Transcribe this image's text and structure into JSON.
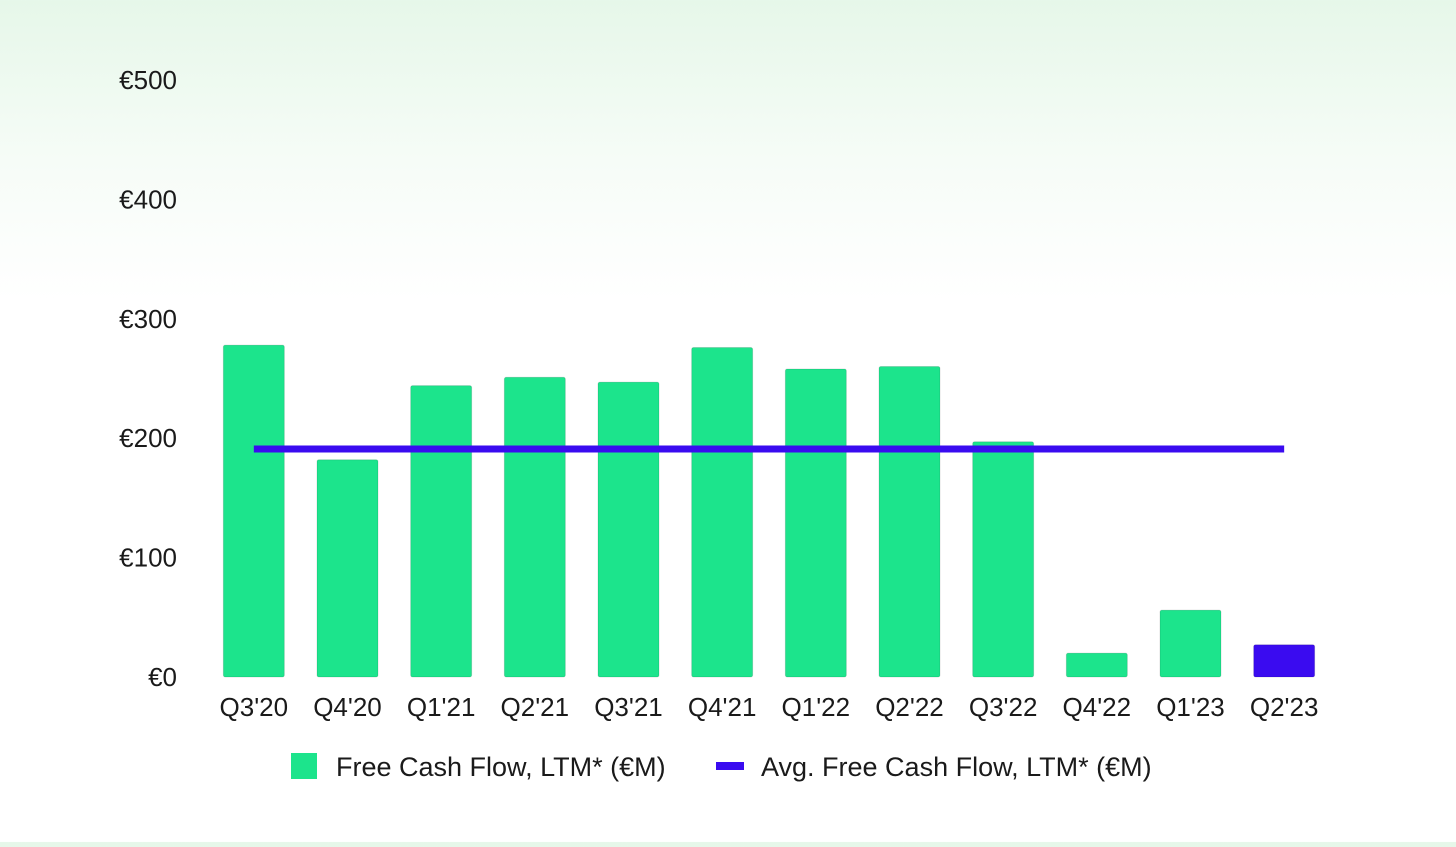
{
  "chart_data": {
    "type": "bar",
    "categories": [
      "Q3'20",
      "Q4'20",
      "Q1'21",
      "Q2'21",
      "Q3'21",
      "Q4'21",
      "Q1'22",
      "Q2'22",
      "Q3'22",
      "Q4'22",
      "Q1'23",
      "Q2'23"
    ],
    "series": [
      {
        "name": "Free Cash Flow, LTM* (€M)",
        "type": "bar",
        "values": [
          278,
          182,
          244,
          251,
          247,
          276,
          258,
          260,
          197,
          20,
          56,
          27
        ],
        "color": "#1ce48c",
        "highlight_index": 11,
        "highlight_color": "#3a0bf0"
      },
      {
        "name": "Avg. Free Cash Flow, LTM* (€M)",
        "type": "line",
        "value": 191,
        "color": "#3a0bf0"
      }
    ],
    "yticks": [
      0,
      100,
      200,
      300,
      400,
      500
    ],
    "ytick_labels": [
      "€0",
      "€100",
      "€200",
      "€300",
      "€400",
      "€500"
    ],
    "ylim": [
      0,
      500
    ],
    "title": "",
    "xlabel": "",
    "ylabel": "",
    "grid": false,
    "legend_position": "bottom-center"
  }
}
